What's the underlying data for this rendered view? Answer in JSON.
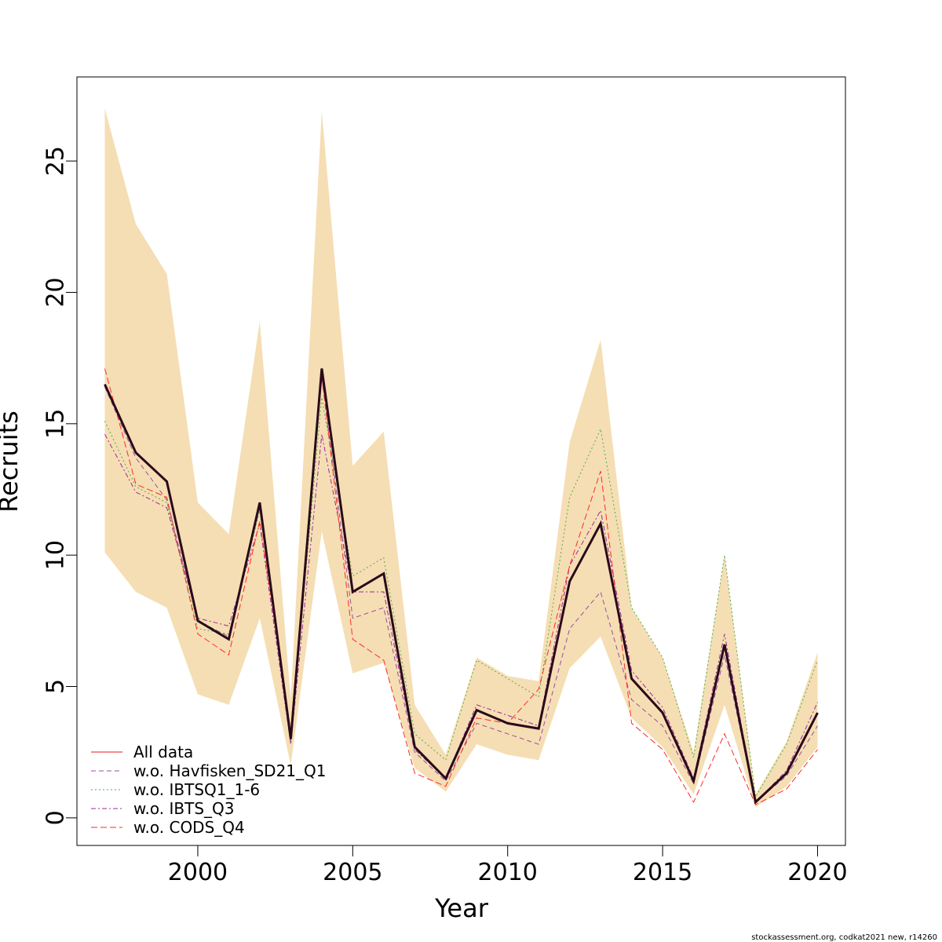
{
  "chart_data": {
    "type": "line",
    "title": "",
    "xlabel": "Year",
    "ylabel": "Recruits",
    "xlim": [
      1996.1,
      2020.9
    ],
    "ylim": [
      -1.05,
      28.2
    ],
    "x_ticks": [
      2000,
      2005,
      2010,
      2015,
      2020
    ],
    "y_ticks": [
      0,
      5,
      10,
      15,
      20,
      25
    ],
    "grid": false,
    "legend_position": "bottom-left",
    "x": [
      1997,
      1998,
      1999,
      2000,
      2001,
      2002,
      2003,
      2004,
      2005,
      2006,
      2007,
      2008,
      2009,
      2010,
      2011,
      2012,
      2013,
      2014,
      2015,
      2016,
      2017,
      2018,
      2019,
      2020
    ],
    "confidence_band": {
      "color": "#f5deb3",
      "lower": [
        10.1,
        8.6,
        8.0,
        4.7,
        4.3,
        7.6,
        2.0,
        10.9,
        5.5,
        5.9,
        1.9,
        1.0,
        2.8,
        2.4,
        2.2,
        5.7,
        6.9,
        3.8,
        2.7,
        0.9,
        4.3,
        0.4,
        1.2,
        2.7
      ],
      "upper": [
        27.0,
        22.6,
        20.7,
        12.0,
        10.8,
        18.9,
        4.5,
        26.9,
        13.4,
        14.7,
        4.3,
        2.4,
        6.1,
        5.4,
        5.2,
        14.3,
        18.2,
        8.0,
        6.1,
        2.5,
        10.0,
        0.9,
        2.9,
        6.3
      ]
    },
    "series": [
      {
        "name": "All data",
        "color": "#e41a1c",
        "dash": "solid",
        "values": [
          16.5,
          13.9,
          12.8,
          7.5,
          6.8,
          12.0,
          3.0,
          17.1,
          8.6,
          9.3,
          2.7,
          1.5,
          4.1,
          3.6,
          3.4,
          9.0,
          11.2,
          5.3,
          4.0,
          1.4,
          6.6,
          0.6,
          1.7,
          4.0
        ]
      },
      {
        "name": "w.o. Havfisken_SD21_Q1",
        "color": "#984ea3",
        "dash": "6,4",
        "values": [
          16.4,
          13.7,
          12.1,
          7.5,
          6.9,
          11.8,
          2.9,
          16.8,
          7.6,
          8.0,
          2.5,
          1.4,
          3.6,
          3.2,
          2.8,
          7.2,
          8.6,
          4.5,
          3.5,
          1.3,
          6.2,
          0.6,
          1.6,
          3.5
        ]
      },
      {
        "name": "w.o. IBTSQ1_1-6",
        "color": "#4daf4a",
        "dash": "2,3",
        "values": [
          15.1,
          12.6,
          12.0,
          7.2,
          7.0,
          11.7,
          3.1,
          16.0,
          9.2,
          9.9,
          3.2,
          2.2,
          6.0,
          5.3,
          4.6,
          12.2,
          14.8,
          8.0,
          6.1,
          2.3,
          10.0,
          0.8,
          2.8,
          6.0
        ]
      },
      {
        "name": "w.o. IBTS_Q3",
        "color": "#9a2a9a",
        "dash": "6,3,2,3",
        "values": [
          14.6,
          12.4,
          11.8,
          7.6,
          7.3,
          11.2,
          2.8,
          14.6,
          8.6,
          8.6,
          2.6,
          1.5,
          4.3,
          3.9,
          3.5,
          9.6,
          11.7,
          5.6,
          4.2,
          1.5,
          7.0,
          0.6,
          1.8,
          4.4
        ]
      },
      {
        "name": "w.o. CODS_Q4",
        "color": "#ff2a2a",
        "dash": "8,4",
        "values": [
          17.1,
          12.7,
          12.2,
          7.0,
          6.2,
          11.3,
          3.3,
          16.8,
          6.8,
          6.0,
          1.7,
          1.2,
          3.8,
          3.6,
          4.9,
          9.6,
          13.2,
          3.6,
          2.6,
          0.6,
          3.2,
          0.5,
          1.1,
          2.6
        ]
      }
    ],
    "main_line": {
      "color": "#2a0a1a",
      "values": [
        16.5,
        13.9,
        12.8,
        7.5,
        6.8,
        12.0,
        3.0,
        17.1,
        8.6,
        9.3,
        2.7,
        1.5,
        4.1,
        3.6,
        3.4,
        9.0,
        11.2,
        5.3,
        4.0,
        1.4,
        6.6,
        0.6,
        1.7,
        4.0
      ]
    }
  },
  "footer": {
    "text": "stockassessment.org, codkat2021 new, r14260"
  }
}
